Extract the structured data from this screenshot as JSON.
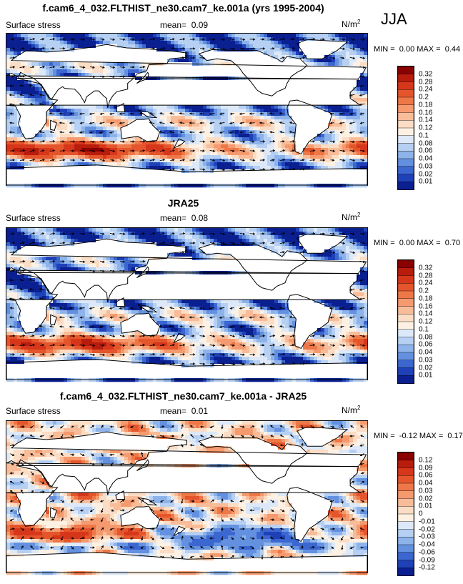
{
  "season": "JJA",
  "units": "N/m",
  "units_sup": "2",
  "chart_data": [
    {
      "type": "heatmap",
      "title": "f.cam6_4_032.FLTHIST_ne30.cam7_ke.001a (yrs 1995-2004)",
      "variable": "Surface stress",
      "mean_label": "mean=",
      "mean": "0.09",
      "min_label": "MIN =",
      "min": "0.00",
      "max_label": "MAX =",
      "max": "0.44",
      "colorbar_levels": [
        "0.32",
        "0.28",
        "0.24",
        "0.2",
        "0.18",
        "0.16",
        "0.14",
        "0.12",
        "0.1",
        "0.08",
        "0.06",
        "0.04",
        "0.03",
        "0.02",
        "0.01"
      ],
      "colorbar_colors": [
        "#8b0000",
        "#b71c0c",
        "#d6371b",
        "#e5552c",
        "#ee7748",
        "#f59a6e",
        "#f8bc98",
        "#fbdcc4",
        "#fdf1e4",
        "#dde8f8",
        "#b6d0f3",
        "#8db3ea",
        "#6391e0",
        "#3c67d1",
        "#1f41b8",
        "#0a1f90"
      ],
      "field_scale": 1.0
    },
    {
      "type": "heatmap",
      "title": "JRA25",
      "variable": "Surface stress",
      "mean_label": "mean=",
      "mean": "0.08",
      "min_label": "MIN =",
      "min": "0.00",
      "max_label": "MAX =",
      "max": "0.70",
      "colorbar_levels": [
        "0.32",
        "0.28",
        "0.24",
        "0.2",
        "0.18",
        "0.16",
        "0.14",
        "0.12",
        "0.1",
        "0.08",
        "0.06",
        "0.04",
        "0.03",
        "0.02",
        "0.01"
      ],
      "colorbar_colors": [
        "#8b0000",
        "#b71c0c",
        "#d6371b",
        "#e5552c",
        "#ee7748",
        "#f59a6e",
        "#f8bc98",
        "#fbdcc4",
        "#fdf1e4",
        "#dde8f8",
        "#b6d0f3",
        "#8db3ea",
        "#6391e0",
        "#3c67d1",
        "#1f41b8",
        "#0a1f90"
      ],
      "field_scale": 0.9
    },
    {
      "type": "heatmap",
      "title": "f.cam6_4_032.FLTHIST_ne30.cam7_ke.001a - JRA25",
      "variable": "Surface stress",
      "mean_label": "mean=",
      "mean": "0.01",
      "min_label": "MIN =",
      "min": "-0.12",
      "max_label": "MAX =",
      "max": "0.17",
      "colorbar_levels": [
        "0.12",
        "0.09",
        "0.06",
        "0.04",
        "0.03",
        "0.02",
        "0.01",
        "0",
        "-0.01",
        "-0.02",
        "-0.03",
        "-0.04",
        "-0.06",
        "-0.09",
        "-0.12"
      ],
      "colorbar_colors": [
        "#8b0000",
        "#b71c0c",
        "#d6371b",
        "#e5552c",
        "#ee7748",
        "#f59a6e",
        "#f8bc98",
        "#fbdcc4",
        "#fdf1e4",
        "#dde8f8",
        "#b6d0f3",
        "#8db3ea",
        "#6391e0",
        "#3c67d1",
        "#1f41b8",
        "#0a1f90"
      ],
      "field_scale": 1.0,
      "difference": true
    }
  ]
}
